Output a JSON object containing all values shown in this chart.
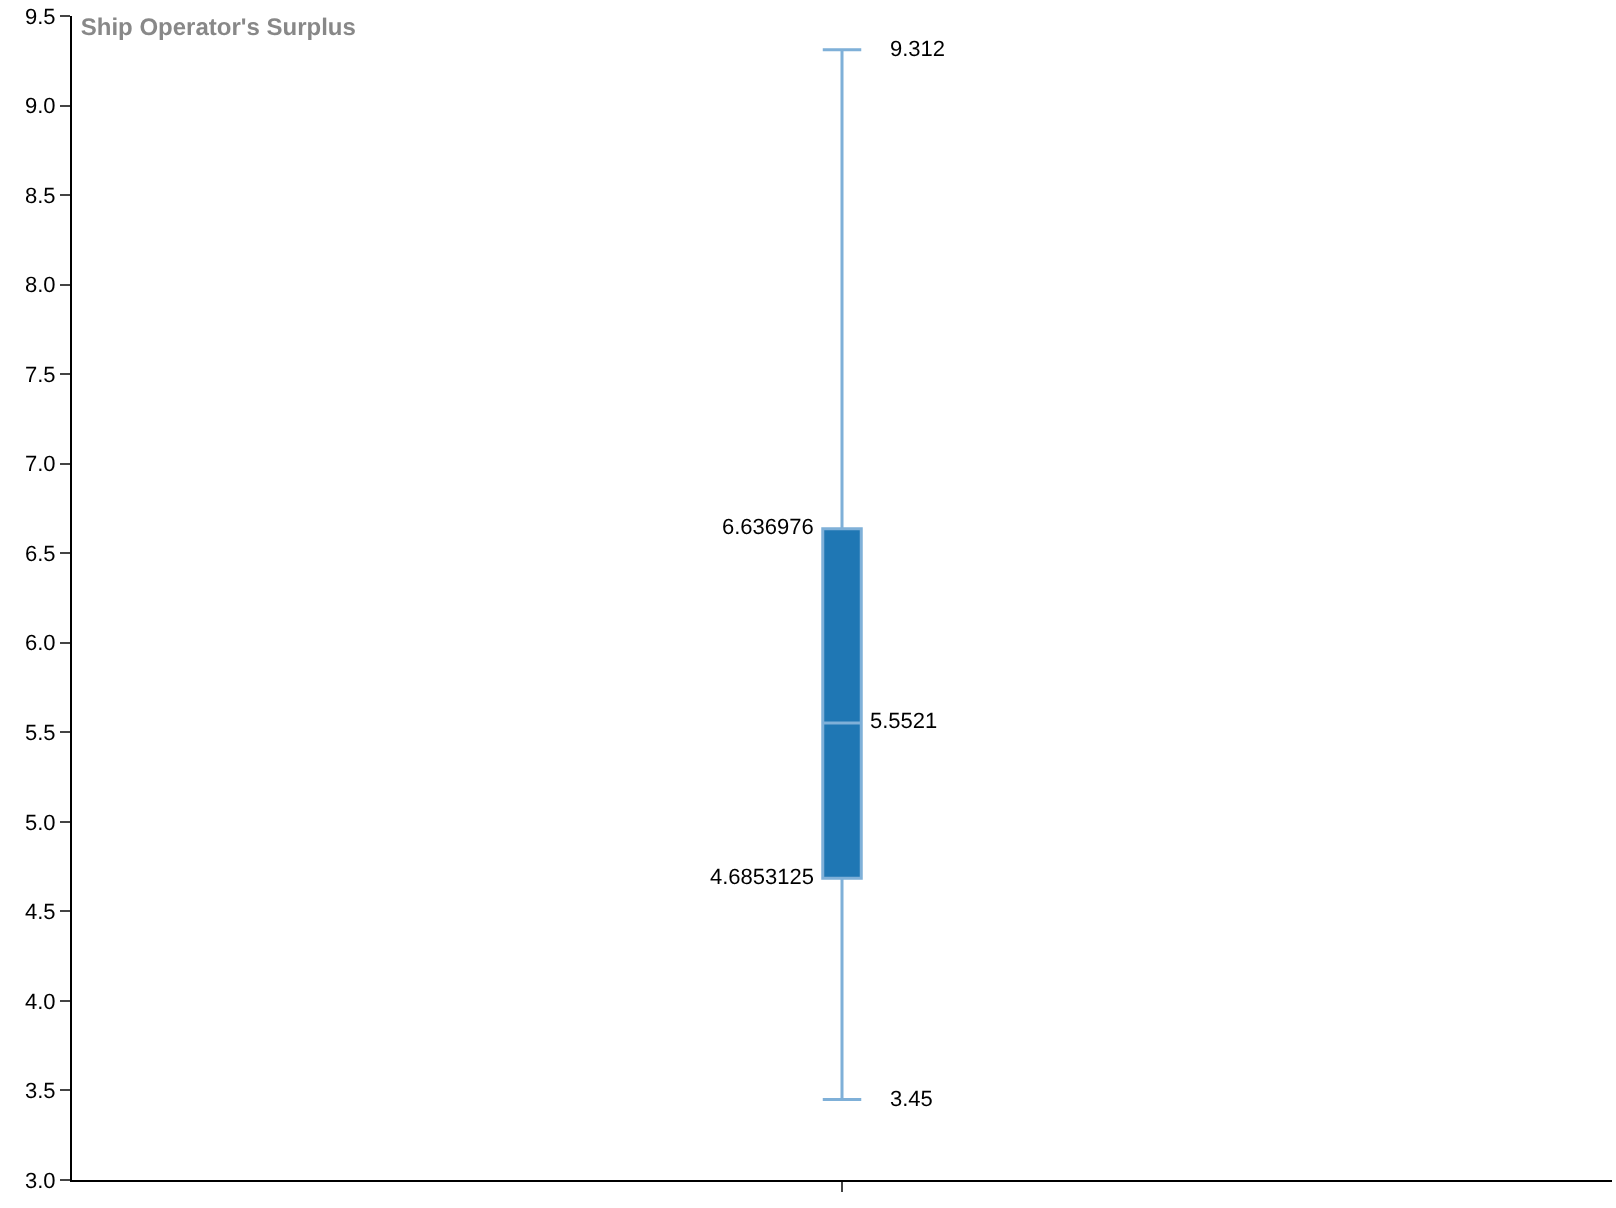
{
  "chart_data": {
    "type": "box",
    "title": "Ship Operator's Surplus",
    "categories": [
      null
    ],
    "boxes": [
      {
        "low": 3.45,
        "q1": 4.6853125,
        "median": 5.5521,
        "q3": 6.636976,
        "high": 9.312
      }
    ],
    "color": "#1f77b4",
    "ylim": [
      3.0,
      9.5
    ],
    "yticks": [
      {
        "value": 3.0,
        "label": "3.0"
      },
      {
        "value": 3.5,
        "label": "3.5"
      },
      {
        "value": 4.0,
        "label": "4.0"
      },
      {
        "value": 4.5,
        "label": "4.5"
      },
      {
        "value": 5.0,
        "label": "5.0"
      },
      {
        "value": 5.5,
        "label": "5.5"
      },
      {
        "value": 6.0,
        "label": "6.0"
      },
      {
        "value": 6.5,
        "label": "6.5"
      },
      {
        "value": 7.0,
        "label": "7.0"
      },
      {
        "value": 7.5,
        "label": "7.5"
      },
      {
        "value": 8.0,
        "label": "8.0"
      },
      {
        "value": 8.5,
        "label": "8.5"
      },
      {
        "value": 9.0,
        "label": "9.0"
      },
      {
        "value": 9.5,
        "label": "9.5"
      }
    ],
    "annotations": [
      "9.312",
      "6.636976",
      "5.5521",
      "4.6853125",
      "3.45"
    ]
  }
}
